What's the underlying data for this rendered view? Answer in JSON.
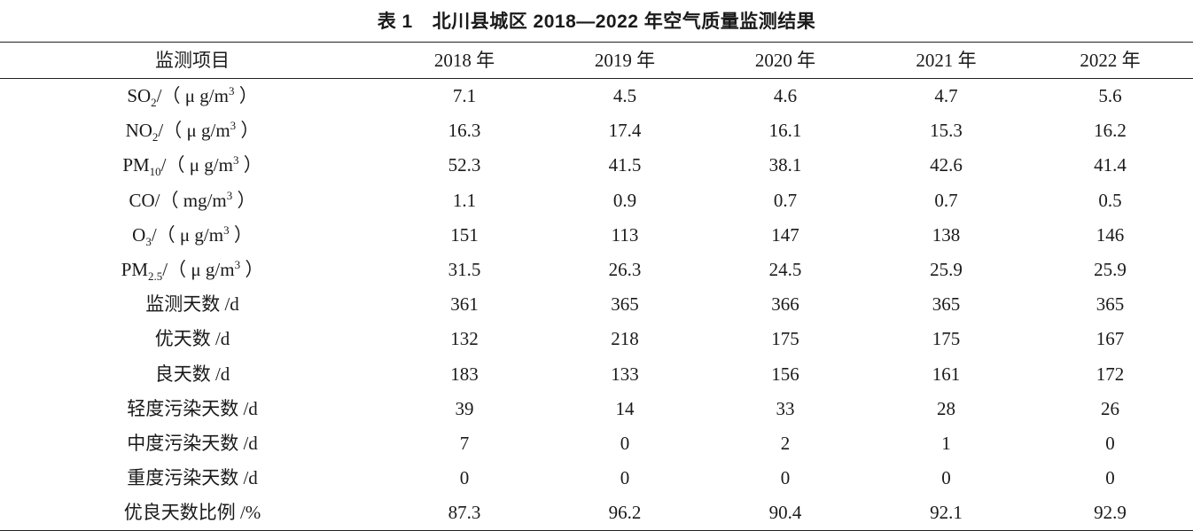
{
  "caption": {
    "number": "表 1",
    "title": "北川县城区 2018—2022 年空气质量监测结果"
  },
  "table": {
    "headers": [
      "监测项目",
      "2018 年",
      "2019 年",
      "2020 年",
      "2021 年",
      "2022 年"
    ],
    "rows": [
      {
        "label": "SO<sub>2</sub>/（ μ g/m<sup>3</sup> ）",
        "values": [
          "7.1",
          "4.5",
          "4.6",
          "4.7",
          "5.6"
        ]
      },
      {
        "label": "NO<sub>2</sub>/（ μ g/m<sup>3</sup> ）",
        "values": [
          "16.3",
          "17.4",
          "16.1",
          "15.3",
          "16.2"
        ]
      },
      {
        "label": "PM<sub>10</sub>/（ μ g/m<sup>3</sup> ）",
        "values": [
          "52.3",
          "41.5",
          "38.1",
          "42.6",
          "41.4"
        ]
      },
      {
        "label": "CO/（ mg/m<sup>3</sup> ）",
        "values": [
          "1.1",
          "0.9",
          "0.7",
          "0.7",
          "0.5"
        ]
      },
      {
        "label": "O<sub>3</sub>/（ μ g/m<sup>3</sup> ）",
        "values": [
          "151",
          "113",
          "147",
          "138",
          "146"
        ]
      },
      {
        "label": "PM<sub>2.5</sub>/（ μ g/m<sup>3</sup> ）",
        "values": [
          "31.5",
          "26.3",
          "24.5",
          "25.9",
          "25.9"
        ]
      },
      {
        "label": "监测天数 /d",
        "values": [
          "361",
          "365",
          "366",
          "365",
          "365"
        ]
      },
      {
        "label": "优天数 /d",
        "values": [
          "132",
          "218",
          "175",
          "175",
          "167"
        ]
      },
      {
        "label": "良天数 /d",
        "values": [
          "183",
          "133",
          "156",
          "161",
          "172"
        ]
      },
      {
        "label": "轻度污染天数 /d",
        "values": [
          "39",
          "14",
          "33",
          "28",
          "26"
        ]
      },
      {
        "label": "中度污染天数 /d",
        "values": [
          "7",
          "0",
          "2",
          "1",
          "0"
        ]
      },
      {
        "label": "重度污染天数 /d",
        "values": [
          "0",
          "0",
          "0",
          "0",
          "0"
        ]
      },
      {
        "label": "优良天数比例 /%",
        "values": [
          "87.3",
          "96.2",
          "90.4",
          "92.1",
          "92.9"
        ]
      }
    ]
  }
}
